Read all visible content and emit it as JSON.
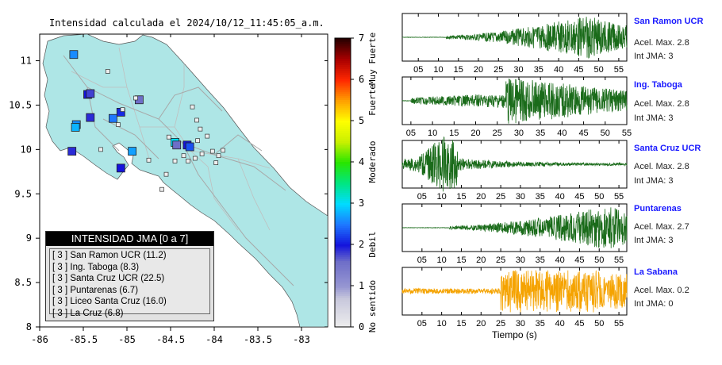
{
  "map": {
    "title": "Intensidad calculada el 2024/10/12_11:45:05_a.m.",
    "xticks": [
      "-86",
      "-85.5",
      "-85",
      "-84.5",
      "-84",
      "-83.5",
      "-83"
    ],
    "yticks": [
      "11",
      "10.5",
      "10",
      "9.5",
      "9",
      "8.5",
      "8"
    ],
    "xlim": [
      -86,
      -82.7
    ],
    "ylim": [
      8,
      11.3
    ],
    "land_color": "#aee6e6",
    "sea_color": "#ffffff"
  },
  "colorbar": {
    "ticks": [
      "0",
      "1",
      "2",
      "3",
      "4",
      "5",
      "6",
      "7"
    ],
    "category_labels": [
      "No sentido",
      "Debil",
      "Moderado",
      "Fuerte",
      "Muy Fuerte"
    ],
    "colors": [
      "#eeeeee",
      "#9999cc",
      "#2222dd",
      "#00aaff",
      "#00dd00",
      "#ffff00",
      "#ff6600",
      "#aa0000",
      "#330000"
    ]
  },
  "legend": {
    "header": "INTENSIDAD JMA [0 a 7]",
    "rows": [
      "[ 3 ]  San Ramon UCR (11.2)",
      "[ 3 ]  Ing. Taboga (8.3)",
      "[ 3 ]  Santa Cruz UCR (22.5)",
      "[ 3 ]  Puntarenas (6.7)",
      "[ 3 ]  Liceo Santa Cruz (16.0)",
      "[ 3 ]  La Cruz (6.8)"
    ]
  },
  "traces": {
    "xlabel": "Tiempo (s)",
    "stations": [
      {
        "name": "San Ramon UCR",
        "accel": "Acel. Max. 2.8",
        "jma": "Int JMA: 3",
        "color": "#1a6b1a",
        "ticks": [
          "05",
          "10",
          "15",
          "20",
          "25",
          "30",
          "35",
          "40",
          "45",
          "50",
          "55"
        ]
      },
      {
        "name": "Ing. Taboga",
        "accel": "Acel. Max. 2.8",
        "jma": "Int JMA: 3",
        "color": "#1a6b1a",
        "ticks": [
          "05",
          "10",
          "15",
          "20",
          "25",
          "30",
          "35",
          "40",
          "45",
          "50",
          "55"
        ]
      },
      {
        "name": "Santa Cruz UCR",
        "accel": "Acel. Max. 2.8",
        "jma": "Int JMA: 3",
        "color": "#1a6b1a",
        "ticks": [
          "05",
          "10",
          "15",
          "20",
          "25",
          "30",
          "35",
          "40",
          "45",
          "50",
          "55"
        ]
      },
      {
        "name": "Puntarenas",
        "accel": "Acel. Max. 2.7",
        "jma": "Int JMA: 3",
        "color": "#1a6b1a",
        "ticks": [
          "05",
          "10",
          "15",
          "20",
          "25",
          "30",
          "35",
          "40",
          "45",
          "50",
          "55"
        ]
      },
      {
        "name": "La Sabana",
        "accel": "Acel. Max. 0.2",
        "jma": "Int JMA: 0",
        "color": "#f5a300",
        "ticks": [
          "05",
          "10",
          "15",
          "20",
          "25",
          "30",
          "35",
          "40",
          "45",
          "50",
          "55"
        ]
      }
    ]
  },
  "chart_data": [
    {
      "type": "scatter",
      "title": "Intensidad calculada el 2024/10/12_11:45:05_a.m.",
      "xlabel": "",
      "ylabel": "",
      "xlim": [
        -86,
        -82.7
      ],
      "ylim": [
        8,
        11.3
      ],
      "series": [
        {
          "name": "San Ramon UCR",
          "intensity": 3,
          "value": 11.2
        },
        {
          "name": "Ing. Taboga",
          "intensity": 3,
          "value": 8.3
        },
        {
          "name": "Santa Cruz UCR",
          "intensity": 3,
          "value": 22.5
        },
        {
          "name": "Puntarenas",
          "intensity": 3,
          "value": 6.7
        },
        {
          "name": "Liceo Santa Cruz",
          "intensity": 3,
          "value": 16.0
        },
        {
          "name": "La Cruz",
          "intensity": 3,
          "value": 6.8
        }
      ],
      "stations_plotted": [
        {
          "lon": -85.61,
          "lat": 11.07,
          "jma": 2.6
        },
        {
          "lon": -85.45,
          "lat": 10.62,
          "jma": 2.0
        },
        {
          "lon": -85.42,
          "lat": 10.63,
          "jma": 1.8
        },
        {
          "lon": -85.58,
          "lat": 10.28,
          "jma": 2.6
        },
        {
          "lon": -85.59,
          "lat": 10.25,
          "jma": 2.8
        },
        {
          "lon": -85.42,
          "lat": 10.36,
          "jma": 1.9
        },
        {
          "lon": -85.16,
          "lat": 10.35,
          "jma": 2.5
        },
        {
          "lon": -85.07,
          "lat": 10.42,
          "jma": 2.1
        },
        {
          "lon": -84.86,
          "lat": 10.56,
          "jma": 1.6
        },
        {
          "lon": -85.63,
          "lat": 9.98,
          "jma": 1.9
        },
        {
          "lon": -84.94,
          "lat": 9.98,
          "jma": 2.7
        },
        {
          "lon": -85.07,
          "lat": 9.79,
          "jma": 2.0
        },
        {
          "lon": -84.45,
          "lat": 10.08,
          "jma": 3.0
        },
        {
          "lon": -84.43,
          "lat": 10.05,
          "jma": 1.6
        },
        {
          "lon": -84.31,
          "lat": 10.05,
          "jma": 2.0
        },
        {
          "lon": -84.28,
          "lat": 10.03,
          "jma": 2.3
        }
      ]
    },
    {
      "type": "line",
      "title": "",
      "xlabel": "Tiempo (s)",
      "ylabel": "",
      "xlim": [
        0,
        57
      ],
      "series": [
        {
          "name": "San Ramon UCR",
          "peak_accel": 2.8,
          "jma": 3,
          "onset_s": 12
        },
        {
          "name": "Ing. Taboga",
          "peak_accel": 2.8,
          "jma": 3,
          "onset_s": 5
        },
        {
          "name": "Santa Cruz UCR",
          "peak_accel": 2.8,
          "jma": 3,
          "onset_s": 0
        },
        {
          "name": "Puntarenas",
          "peak_accel": 2.7,
          "jma": 3,
          "onset_s": 12
        },
        {
          "name": "La Sabana",
          "peak_accel": 0.2,
          "jma": 0,
          "onset_s": 0
        }
      ]
    }
  ]
}
